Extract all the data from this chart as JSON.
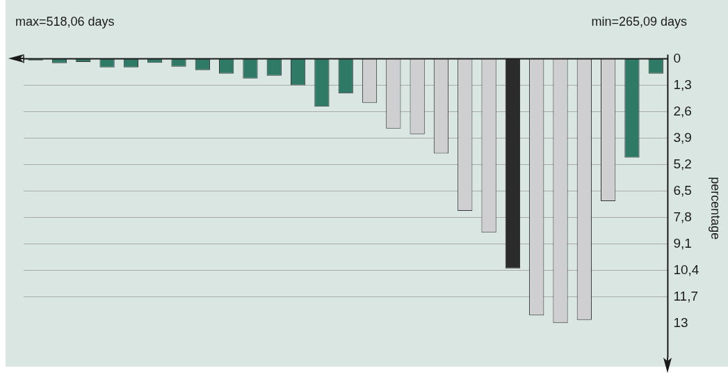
{
  "chart_data": {
    "type": "bar",
    "ylabel": "percentage",
    "annotations": [
      "max=518,06 days",
      "min=265,09 days"
    ],
    "categories": [
      null,
      null,
      null,
      null,
      null,
      null,
      null,
      null,
      null,
      null,
      null,
      null,
      null,
      null,
      null,
      null,
      null,
      null,
      null,
      null,
      null,
      null,
      null,
      null,
      null,
      null,
      null
    ],
    "values": [
      0.08,
      0.22,
      0.16,
      0.42,
      0.42,
      0.2,
      0.39,
      0.56,
      0.73,
      0.97,
      0.83,
      1.3,
      2.36,
      1.71,
      2.17,
      3.43,
      3.71,
      4.66,
      7.48,
      8.55,
      10.31,
      12.62,
      13.0,
      12.84,
      7.0,
      4.86,
      0.73
    ],
    "colors": [
      "#2f7a66",
      "#2f7a66",
      "#2f7a66",
      "#2f7a66",
      "#2f7a66",
      "#2f7a66",
      "#2f7a66",
      "#2f7a66",
      "#2f7a66",
      "#2f7a66",
      "#2f7a66",
      "#2f7a66",
      "#2f7a66",
      "#2f7a66",
      "#cfcfd1",
      "#cfcfd1",
      "#cfcfd1",
      "#cfcfd1",
      "#cfcfd1",
      "#cfcfd1",
      "#2b2b2b",
      "#cfcfd1",
      "#cfcfd1",
      "#cfcfd1",
      "#cfcfd1",
      "#2f7a66",
      "#2f7a66"
    ],
    "ylim": [
      14.7,
      0
    ],
    "yticks": [
      0,
      {
        "value": 1.3,
        "label": "1,3"
      },
      {
        "value": 2.6,
        "label": "2,6"
      },
      {
        "value": 3.9,
        "label": "3,9"
      },
      {
        "value": 5.2,
        "label": "5,2"
      },
      {
        "value": 6.5,
        "label": "6,5"
      },
      {
        "value": 7.8,
        "label": "7,8"
      },
      {
        "value": 9.1,
        "label": "9,1"
      },
      {
        "value": 10.4,
        "label": "10,4"
      },
      {
        "value": 11.7,
        "label": "11,7"
      },
      13
    ],
    "grid": "y",
    "legend": false
  }
}
